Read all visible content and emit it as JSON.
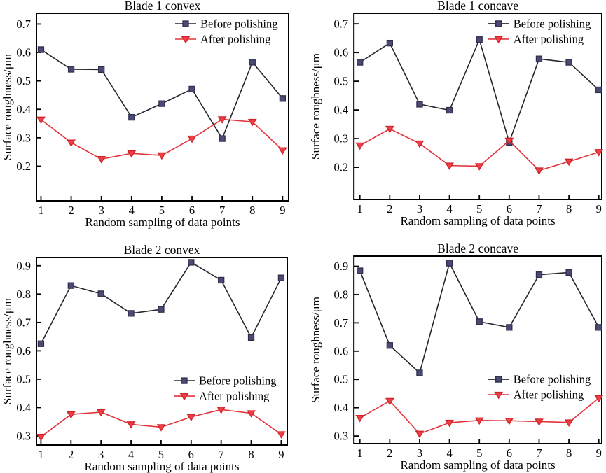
{
  "figure": {
    "background": "#ffffff",
    "frame_color": "#000000",
    "text_color": "#000000"
  },
  "chart_data": [
    {
      "type": "line",
      "title": "Blade 1 convex",
      "xlabel": "Random sampling of data points",
      "ylabel": "Surface roughness/μm",
      "x": [
        1,
        2,
        3,
        4,
        5,
        6,
        7,
        8,
        9
      ],
      "xticks": [
        1,
        2,
        3,
        4,
        5,
        6,
        7,
        8,
        9
      ],
      "yticks": [
        0.2,
        0.3,
        0.4,
        0.5,
        0.6,
        0.7
      ],
      "xlim": [
        0.85,
        9.2
      ],
      "ylim": [
        0.078,
        0.738
      ],
      "grid": false,
      "legend_pos": "top-right",
      "series": [
        {
          "name": "Before polishing",
          "marker": "square",
          "line_color": "#26262e",
          "marker_fill": "#4a4a75",
          "marker_stroke": "#2f2f4d",
          "values": [
            0.61,
            0.541,
            0.54,
            0.372,
            0.42,
            0.471,
            0.297,
            0.566,
            0.438
          ]
        },
        {
          "name": "After polishing",
          "marker": "triangle-down",
          "line_color": "#e3333b",
          "marker_fill": "#ef4048",
          "marker_stroke": "#d02329",
          "values": [
            0.364,
            0.283,
            0.225,
            0.245,
            0.238,
            0.297,
            0.365,
            0.356,
            0.256
          ]
        }
      ]
    },
    {
      "type": "line",
      "title": "Blade 1 concave",
      "xlabel": "Random sampling of data points",
      "ylabel": "Surface roughness/μm",
      "x": [
        1,
        2,
        3,
        4,
        5,
        6,
        7,
        8,
        9
      ],
      "xticks": [
        1,
        2,
        3,
        4,
        5,
        6,
        7,
        8,
        9
      ],
      "yticks": [
        0.2,
        0.3,
        0.4,
        0.5,
        0.6,
        0.7
      ],
      "xlim": [
        0.8,
        9.1
      ],
      "ylim": [
        0.088,
        0.737
      ],
      "grid": false,
      "legend_pos": "top-right",
      "series": [
        {
          "name": "Before polishing",
          "marker": "square",
          "line_color": "#26262e",
          "marker_fill": "#4a4a75",
          "marker_stroke": "#2f2f4d",
          "values": [
            0.566,
            0.633,
            0.42,
            0.399,
            0.645,
            0.287,
            0.578,
            0.566,
            0.47
          ]
        },
        {
          "name": "After polishing",
          "marker": "triangle-down",
          "line_color": "#e3333b",
          "marker_fill": "#ef4048",
          "marker_stroke": "#d02329",
          "values": [
            0.276,
            0.334,
            0.283,
            0.206,
            0.204,
            0.293,
            0.189,
            0.22,
            0.253
          ]
        }
      ]
    },
    {
      "type": "line",
      "title": "Blade 2 convex",
      "xlabel": "Random sampling of data points",
      "ylabel": "Surface roughness/μm",
      "x": [
        1,
        2,
        3,
        4,
        5,
        6,
        7,
        8,
        9
      ],
      "xticks": [
        1,
        2,
        3,
        4,
        5,
        6,
        7,
        8,
        9
      ],
      "yticks": [
        0.3,
        0.4,
        0.5,
        0.6,
        0.7,
        0.8,
        0.9
      ],
      "xlim": [
        0.85,
        9.2
      ],
      "ylim": [
        0.268,
        0.929
      ],
      "grid": false,
      "legend_pos": "middle-right",
      "series": [
        {
          "name": "Before polishing",
          "marker": "square",
          "line_color": "#26262e",
          "marker_fill": "#4a4a75",
          "marker_stroke": "#2f2f4d",
          "values": [
            0.625,
            0.83,
            0.801,
            0.732,
            0.746,
            0.912,
            0.849,
            0.647,
            0.857
          ]
        },
        {
          "name": "After polishing",
          "marker": "triangle-down",
          "line_color": "#e3333b",
          "marker_fill": "#ef4048",
          "marker_stroke": "#d02329",
          "values": [
            0.297,
            0.376,
            0.384,
            0.341,
            0.331,
            0.367,
            0.393,
            0.38,
            0.306
          ]
        }
      ]
    },
    {
      "type": "line",
      "title": "Blade 2 concave",
      "xlabel": "Random sampling of data points",
      "ylabel": "Surface roughness/μm",
      "x": [
        1,
        2,
        3,
        4,
        5,
        6,
        7,
        8,
        9
      ],
      "xticks": [
        1,
        2,
        3,
        4,
        5,
        6,
        7,
        8,
        9
      ],
      "yticks": [
        0.3,
        0.4,
        0.5,
        0.6,
        0.7,
        0.8,
        0.9
      ],
      "xlim": [
        0.8,
        9.1
      ],
      "ylim": [
        0.273,
        0.936
      ],
      "grid": false,
      "legend_pos": "middle-right",
      "series": [
        {
          "name": "Before polishing",
          "marker": "square",
          "line_color": "#26262e",
          "marker_fill": "#4a4a75",
          "marker_stroke": "#2f2f4d",
          "values": [
            0.884,
            0.62,
            0.523,
            0.911,
            0.704,
            0.684,
            0.87,
            0.878,
            0.684
          ]
        },
        {
          "name": "After polishing",
          "marker": "triangle-down",
          "line_color": "#e3333b",
          "marker_fill": "#ef4048",
          "marker_stroke": "#d02329",
          "values": [
            0.364,
            0.424,
            0.308,
            0.347,
            0.355,
            0.354,
            0.351,
            0.348,
            0.434
          ]
        }
      ]
    }
  ]
}
